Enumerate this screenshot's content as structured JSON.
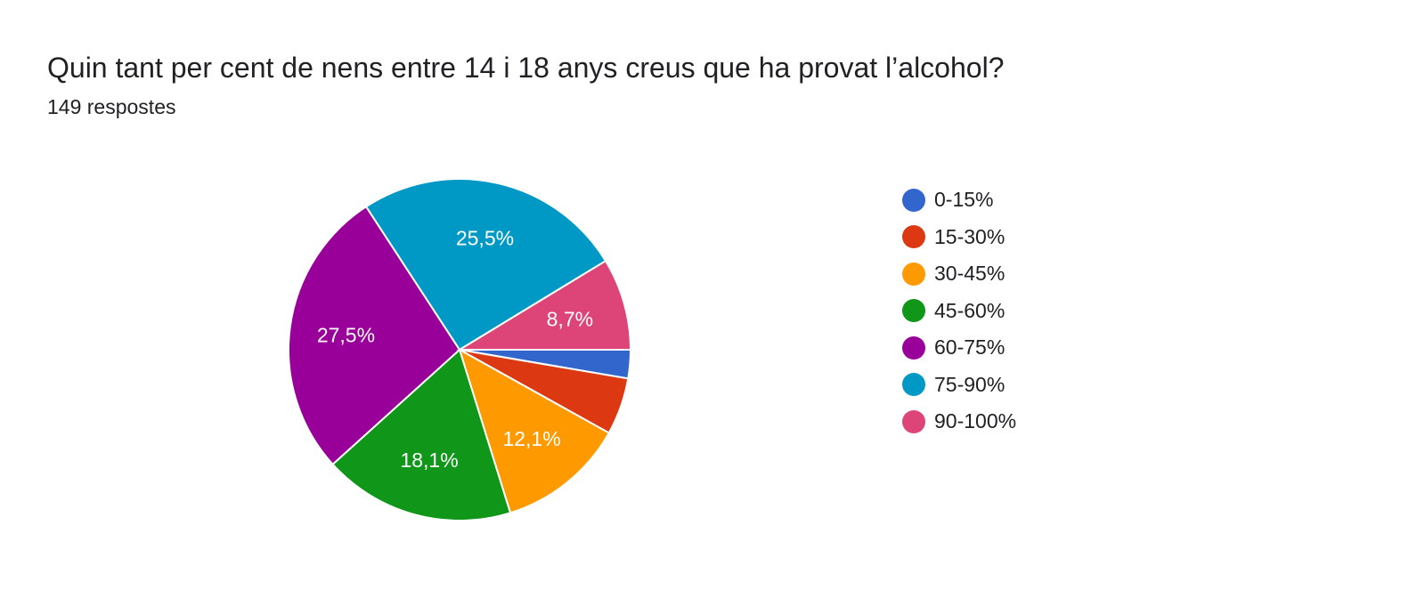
{
  "header": {
    "title": "Quin tant per cent de nens entre 14 i 18 anys creus que ha provat l’alcohol?",
    "subtitle": "149 respostes"
  },
  "chart_data": {
    "type": "pie",
    "categories": [
      "0-15%",
      "15-30%",
      "30-45%",
      "45-60%",
      "60-75%",
      "75-90%",
      "90-100%"
    ],
    "values": [
      2.7,
      5.4,
      12.1,
      18.1,
      27.5,
      25.5,
      8.7
    ],
    "data_labels": [
      "",
      "",
      "12,1%",
      "18,1%",
      "27,5%",
      "25,5%",
      "8,7%"
    ],
    "colors": [
      "#3366cc",
      "#dc3912",
      "#ff9900",
      "#109618",
      "#990099",
      "#0099c6",
      "#dd4477"
    ],
    "legend": {
      "position": "right"
    }
  }
}
